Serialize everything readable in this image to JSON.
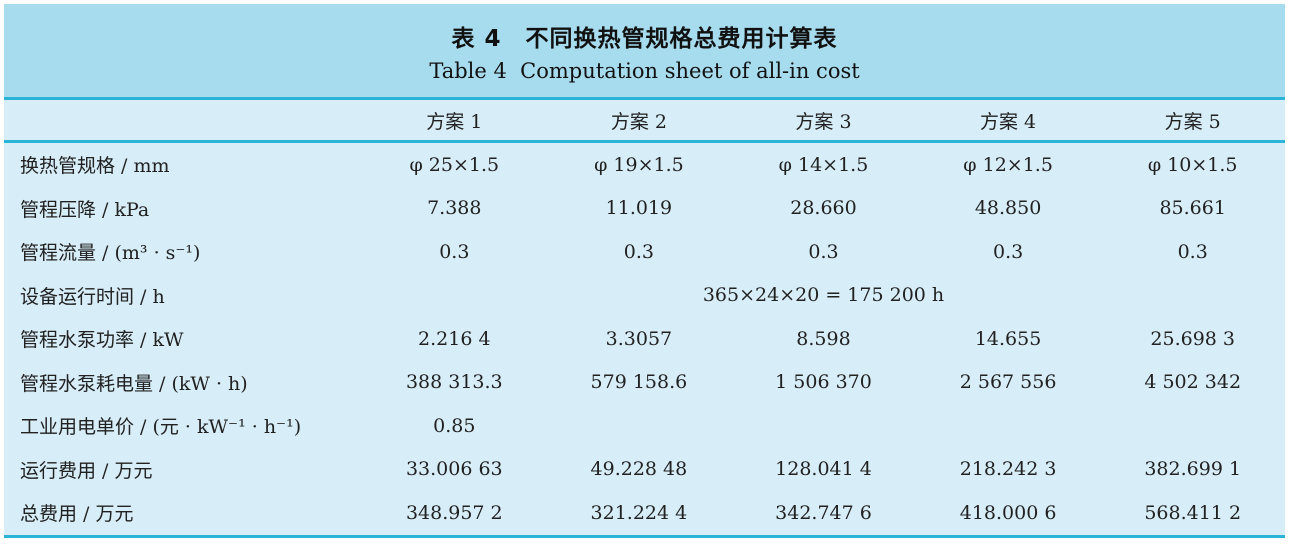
{
  "title": {
    "zh": "表 4　不同换热管规格总费用计算表",
    "en": "Table 4  Computation sheet of all-in cost"
  },
  "colors": {
    "title_band_bg": "#a7dbee",
    "table_body_bg": "#d7edf8",
    "rule_teal": "#29b4d8",
    "text": "#212121"
  },
  "chart_data": {
    "type": "table",
    "title": "表 4　不同换热管规格总费用计算表 / Table 4 Computation sheet of all-in cost",
    "columns": [
      "",
      "方案 1",
      "方案 2",
      "方案 3",
      "方案 4",
      "方案 5"
    ],
    "rows": [
      [
        "换热管规格 / mm",
        "φ 25×1.5",
        "φ 19×1.5",
        "φ 14×1.5",
        "φ 12×1.5",
        "φ 10×1.5"
      ],
      [
        "管程压降 / kPa",
        "7.388",
        "11.019",
        "28.660",
        "48.850",
        "85.661"
      ],
      [
        "管程流量 / (m³ · s⁻¹)",
        "0.3",
        "0.3",
        "0.3",
        "0.3",
        "0.3"
      ],
      [
        "设备运行时间 / h",
        "365×24×20 = 175 200 h (merged across all columns)"
      ],
      [
        "管程水泵功率 / kW",
        "2.216 4",
        "3.3057",
        "8.598",
        "14.655",
        "25.698 3"
      ],
      [
        "管程水泵耗电量 / (kW · h)",
        "388 313.3",
        "579 158.6",
        "1 506 370",
        "2 567 556",
        "4 502 342"
      ],
      [
        "工业用电单价 / (元 · kW⁻¹ · h⁻¹)",
        "0.85",
        "",
        "",
        "",
        ""
      ],
      [
        "运行费用 / 万元",
        "33.006 63",
        "49.228 48",
        "128.041 4",
        "218.242 3",
        "382.699 1"
      ],
      [
        "总费用 / 万元",
        "348.957 2",
        "321.224 4",
        "342.747 6",
        "418.000 6",
        "568.411 2"
      ]
    ]
  },
  "table": {
    "header": {
      "columns": [
        "方案 1",
        "方案 2",
        "方案 3",
        "方案 4",
        "方案 5"
      ]
    },
    "rows": [
      {
        "label": "换热管规格 / mm",
        "values": [
          "φ 25×1.5",
          "φ 19×1.5",
          "φ 14×1.5",
          "φ 12×1.5",
          "φ 10×1.5"
        ]
      },
      {
        "label": "管程压降 / kPa",
        "values": [
          "7.388",
          "11.019",
          "28.660",
          "48.850",
          "85.661"
        ]
      },
      {
        "label": "管程流量 / (m³ · s⁻¹)",
        "values": [
          "0.3",
          "0.3",
          "0.3",
          "0.3",
          "0.3"
        ]
      },
      {
        "label": "设备运行时间 / h",
        "merged_value": "365×24×20 = 175 200 h"
      },
      {
        "label": "管程水泵功率 / kW",
        "values": [
          "2.216 4",
          "3.3057",
          "8.598",
          "14.655",
          "25.698 3"
        ]
      },
      {
        "label": "管程水泵耗电量 / (kW · h)",
        "values": [
          "388 313.3",
          "579 158.6",
          "1 506 370",
          "2 567 556",
          "4 502 342"
        ]
      },
      {
        "label": "工业用电单价 / (元 · kW⁻¹ · h⁻¹)",
        "values": [
          "0.85",
          "",
          "",
          "",
          ""
        ]
      },
      {
        "label": "运行费用 / 万元",
        "values": [
          "33.006 63",
          "49.228 48",
          "128.041 4",
          "218.242 3",
          "382.699 1"
        ]
      },
      {
        "label": "总费用 / 万元",
        "values": [
          "348.957 2",
          "321.224 4",
          "342.747 6",
          "418.000 6",
          "568.411 2"
        ]
      }
    ]
  }
}
